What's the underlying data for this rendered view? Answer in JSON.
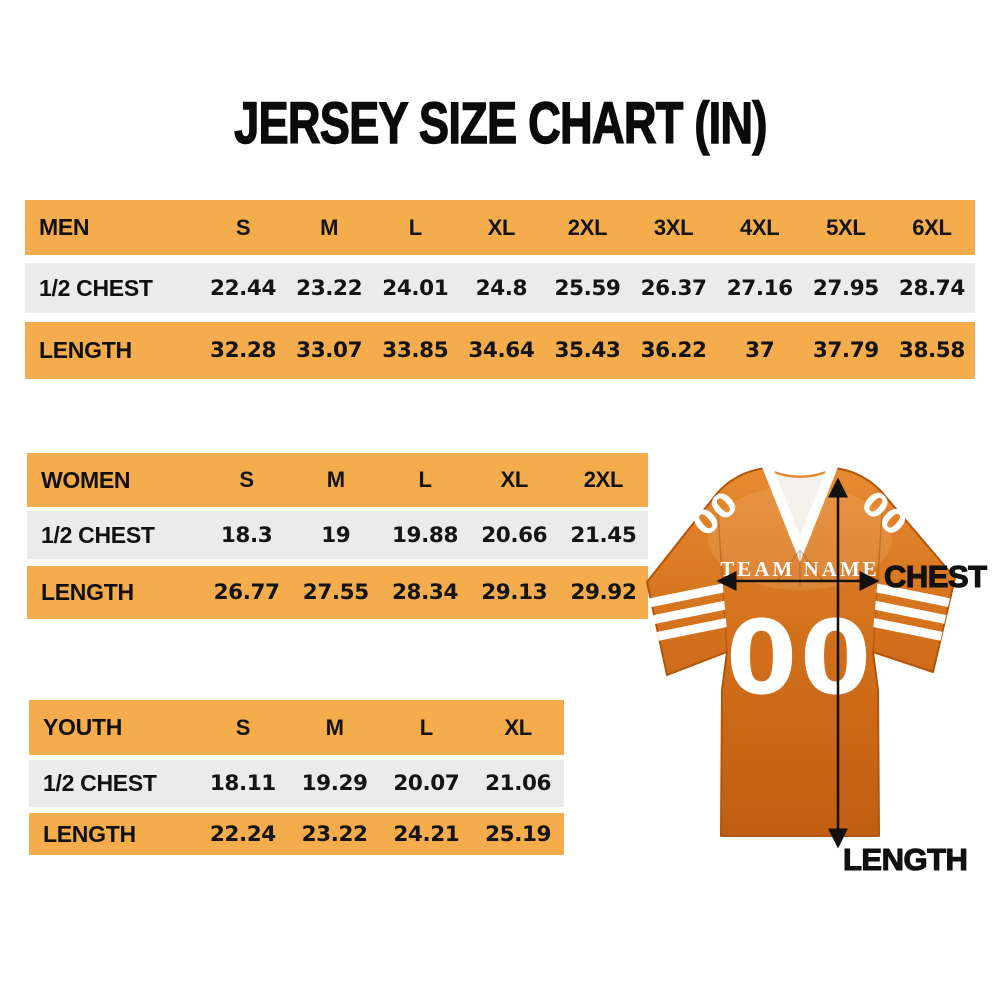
{
  "title": "JERSEY SIZE CHART (IN)",
  "tables": [
    {
      "id": "men",
      "label": "MEN",
      "sizes": [
        "S",
        "M",
        "L",
        "XL",
        "2XL",
        "3XL",
        "4XL",
        "5XL",
        "6XL"
      ],
      "rows": [
        {
          "label": "1/2 CHEST",
          "values": [
            "22.44",
            "23.22",
            "24.01",
            "24.8",
            "25.59",
            "26.37",
            "27.16",
            "27.95",
            "28.74"
          ]
        },
        {
          "label": "LENGTH",
          "values": [
            "32.28",
            "33.07",
            "33.85",
            "34.64",
            "35.43",
            "36.22",
            "37",
            "37.79",
            "38.58"
          ]
        }
      ]
    },
    {
      "id": "women",
      "label": "WOMEN",
      "sizes": [
        "S",
        "M",
        "L",
        "XL",
        "2XL"
      ],
      "rows": [
        {
          "label": "1/2 CHEST",
          "values": [
            "18.3",
            "19",
            "19.88",
            "20.66",
            "21.45"
          ]
        },
        {
          "label": "LENGTH",
          "values": [
            "26.77",
            "27.55",
            "28.34",
            "29.13",
            "29.92"
          ]
        }
      ]
    },
    {
      "id": "youth",
      "label": "YOUTH",
      "sizes": [
        "S",
        "M",
        "L",
        "XL"
      ],
      "rows": [
        {
          "label": "1/2 CHEST",
          "values": [
            "18.11",
            "19.29",
            "20.07",
            "21.06"
          ]
        },
        {
          "label": "LENGTH",
          "values": [
            "22.24",
            "23.22",
            "24.21",
            "25.19"
          ]
        }
      ]
    }
  ],
  "chart_data": [
    {
      "type": "table",
      "title": "MEN",
      "columns": [
        "S",
        "M",
        "L",
        "XL",
        "2XL",
        "3XL",
        "4XL",
        "5XL",
        "6XL"
      ],
      "rows": [
        {
          "label": "1/2 CHEST",
          "values": [
            22.44,
            23.22,
            24.01,
            24.8,
            25.59,
            26.37,
            27.16,
            27.95,
            28.74
          ]
        },
        {
          "label": "LENGTH",
          "values": [
            32.28,
            33.07,
            33.85,
            34.64,
            35.43,
            36.22,
            37,
            37.79,
            38.58
          ]
        }
      ],
      "units": "inches"
    },
    {
      "type": "table",
      "title": "WOMEN",
      "columns": [
        "S",
        "M",
        "L",
        "XL",
        "2XL"
      ],
      "rows": [
        {
          "label": "1/2 CHEST",
          "values": [
            18.3,
            19,
            19.88,
            20.66,
            21.45
          ]
        },
        {
          "label": "LENGTH",
          "values": [
            26.77,
            27.55,
            28.34,
            29.13,
            29.92
          ]
        }
      ],
      "units": "inches"
    },
    {
      "type": "table",
      "title": "YOUTH",
      "columns": [
        "S",
        "M",
        "L",
        "XL"
      ],
      "rows": [
        {
          "label": "1/2 CHEST",
          "values": [
            18.11,
            19.29,
            20.07,
            21.06
          ]
        },
        {
          "label": "LENGTH",
          "values": [
            22.24,
            23.22,
            24.21,
            25.19
          ]
        }
      ],
      "units": "inches"
    }
  ],
  "jersey": {
    "team_name": "TEAM NAME",
    "number": "00",
    "shoulder_number": "00",
    "chest_label": "CHEST",
    "length_label": "LENGTH"
  },
  "colors": {
    "table_orange": "#F5AC4D",
    "table_gray": "#EBEBEB",
    "jersey_orange": "#D2691E",
    "jersey_orange_dark": "#C05E12",
    "jersey_orange_light": "#E78A30",
    "arrow_black": "#111111",
    "text": "#141414"
  }
}
